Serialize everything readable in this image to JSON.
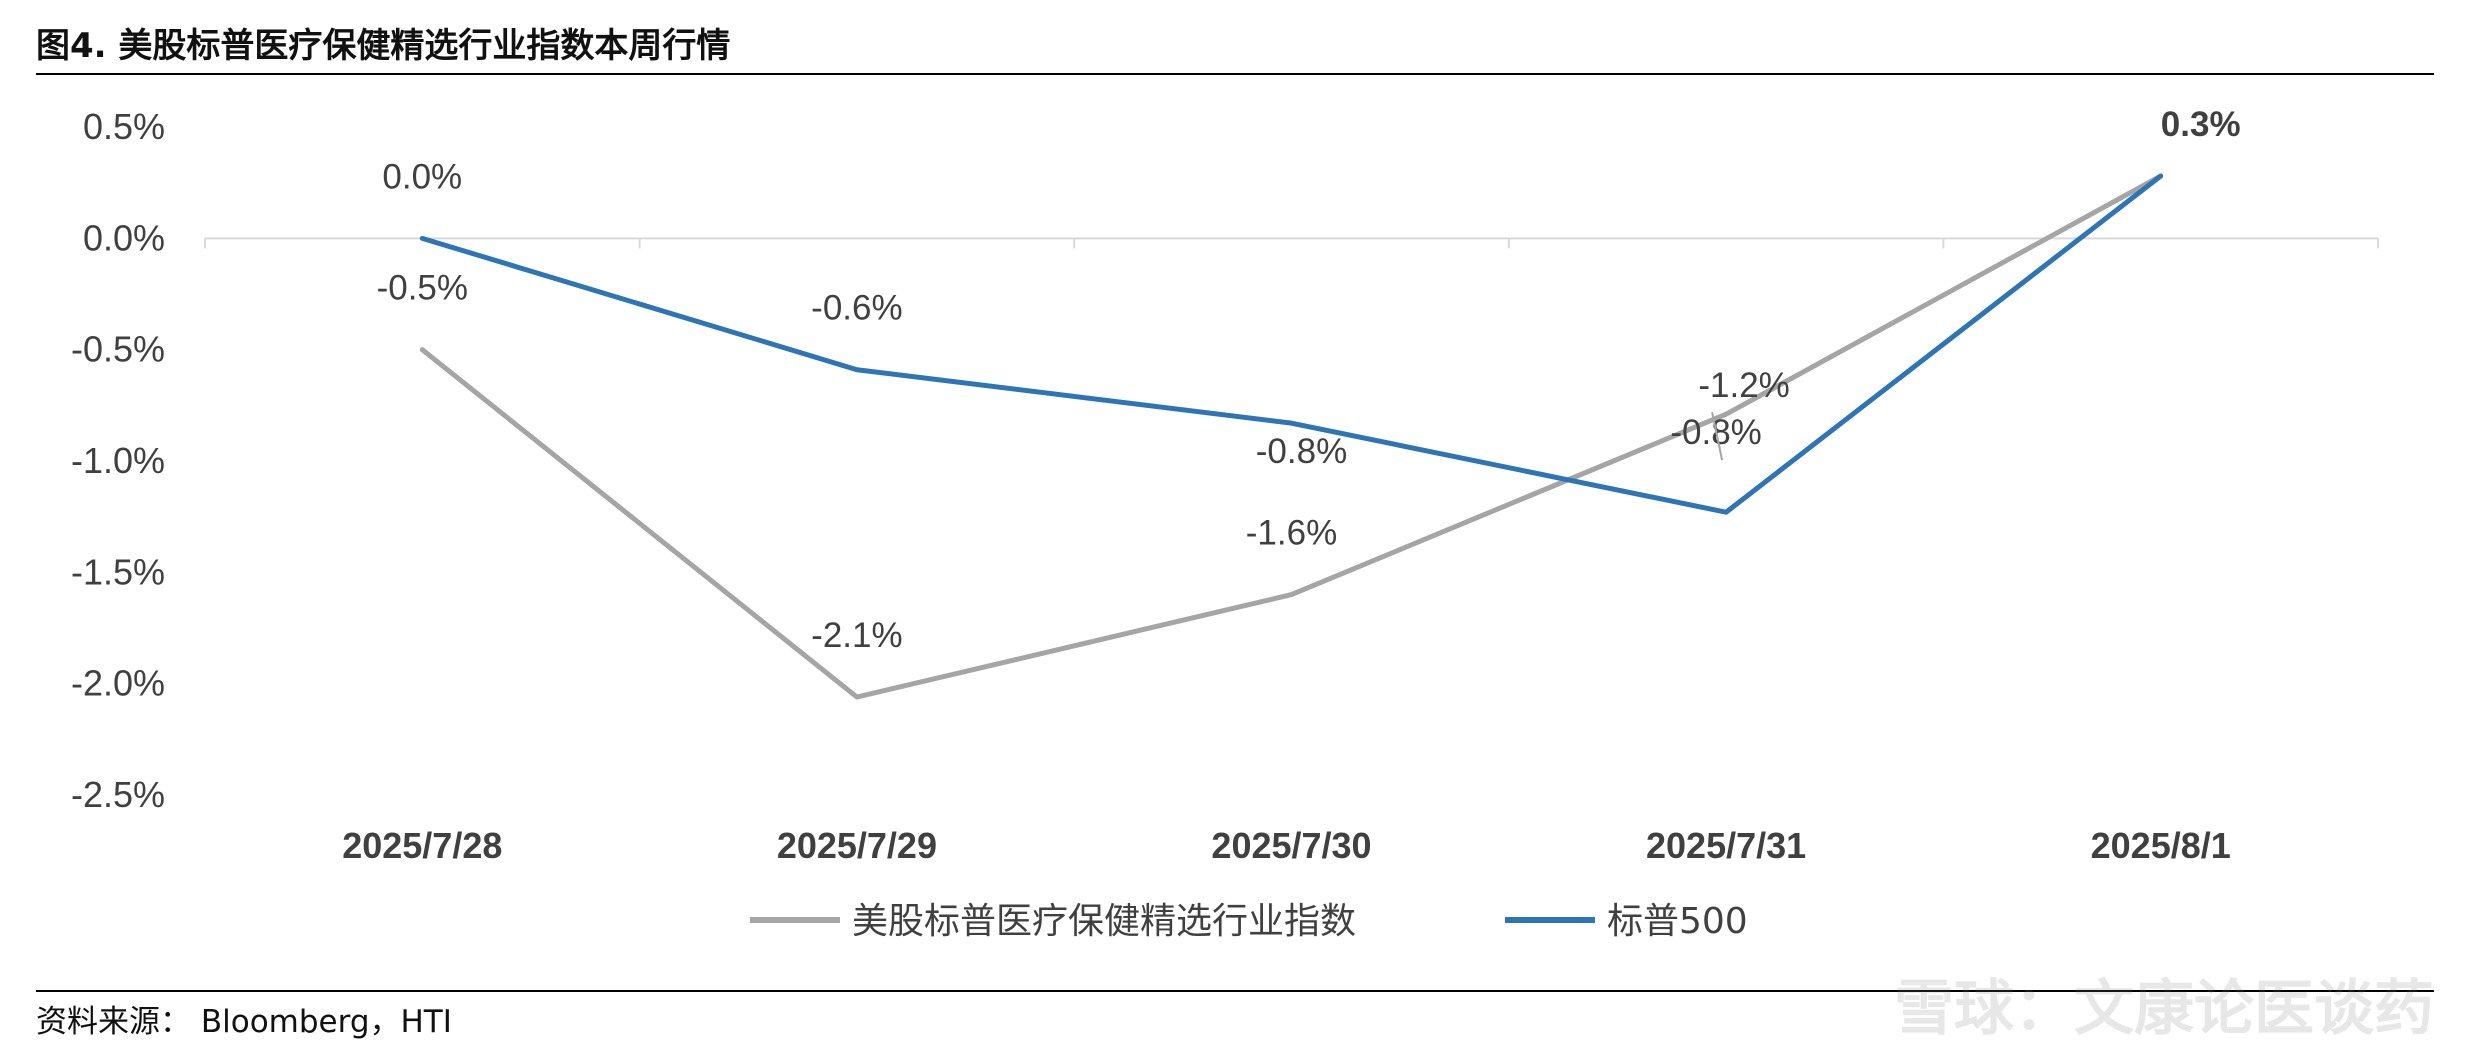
{
  "figure": {
    "title": "图4.   美股标普医疗保健精选行业指数本周行情",
    "source": "资料来源：  Bloomberg，HTI",
    "watermark": "雪球：文康论医谈药"
  },
  "chart_data": {
    "type": "line",
    "categories": [
      "2025/7/28",
      "2025/7/29",
      "2025/7/30",
      "2025/7/31",
      "2025/8/1"
    ],
    "series": [
      {
        "name": "美股标普医疗保健精选行业指数",
        "color": "#A5A5A5",
        "values": [
          -0.5,
          -2.06,
          -1.6,
          -0.79,
          0.28
        ],
        "labels": [
          "-0.5%",
          "-2.1%",
          "-1.6%",
          "-0.8%",
          ""
        ]
      },
      {
        "name": "标普500",
        "color": "#2E75B6",
        "values": [
          0.0,
          -0.59,
          -0.83,
          -1.23,
          0.28
        ],
        "labels": [
          "0.0%",
          "-0.6%",
          "-0.8%",
          "-1.2%",
          "0.3%"
        ]
      }
    ],
    "ylim": [
      -2.5,
      0.5
    ],
    "yticks": [
      0.5,
      0.0,
      -0.5,
      -1.0,
      -1.5,
      -2.0,
      -2.5
    ],
    "ytick_labels": [
      "0.5%",
      "0.0%",
      "-0.5%",
      "-1.0%",
      "-1.5%",
      "-2.0%",
      "-2.5%"
    ],
    "grid": false,
    "legend_position": "bottom"
  }
}
